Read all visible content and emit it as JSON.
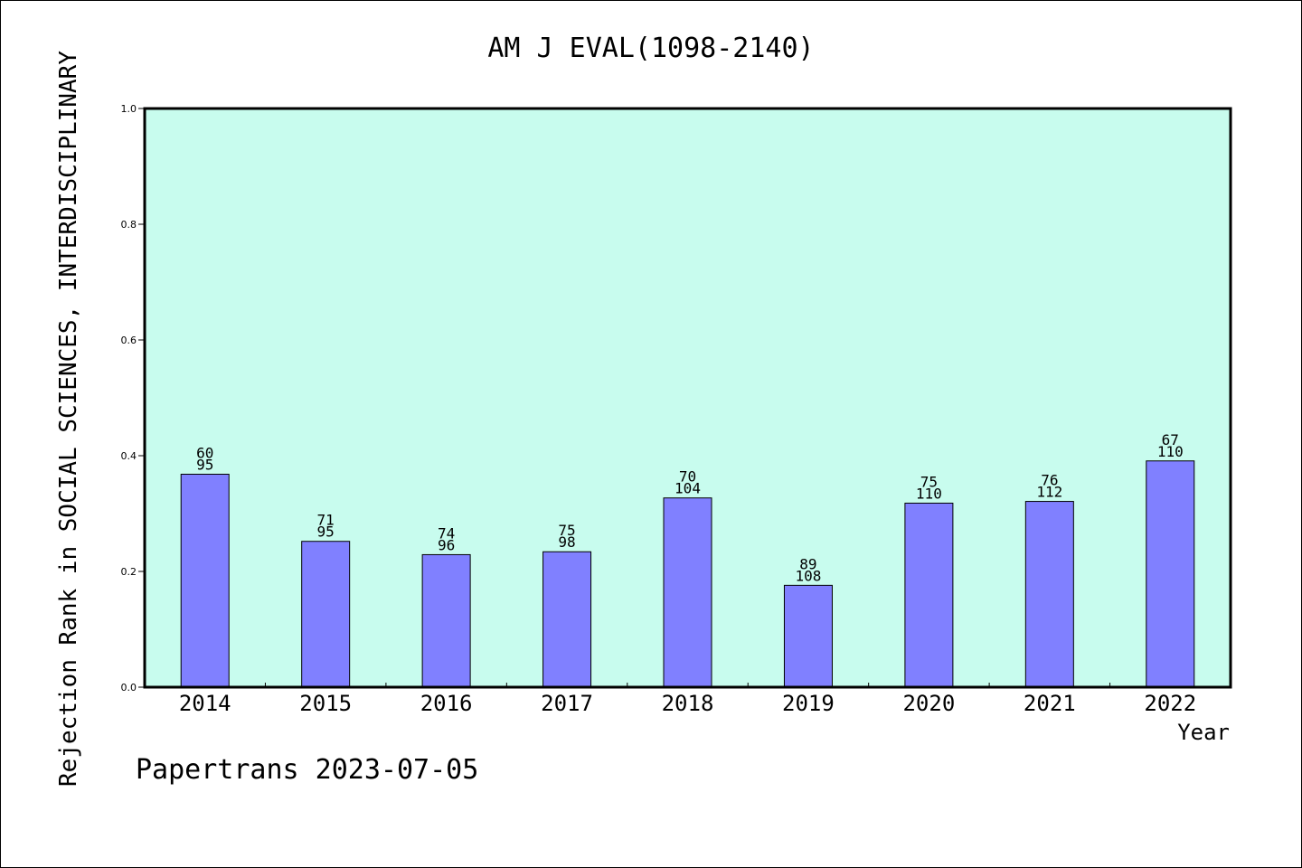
{
  "chart_data": {
    "type": "bar",
    "title": "AM J EVAL(1098-2140)",
    "xlabel": "Year",
    "ylabel": "Rejection Rank in SOCIAL SCIENCES, INTERDISCIPLINARY",
    "ylim": [
      0,
      1.0
    ],
    "yticks": [
      "0.0",
      "0.2",
      "0.4",
      "0.6",
      "0.8",
      "1.0"
    ],
    "categories": [
      "2014",
      "2015",
      "2016",
      "2017",
      "2018",
      "2019",
      "2020",
      "2021",
      "2022"
    ],
    "values": [
      0.368,
      0.252,
      0.229,
      0.234,
      0.327,
      0.176,
      0.318,
      0.321,
      0.391
    ],
    "labels_top": [
      "60",
      "71",
      "74",
      "75",
      "70",
      "89",
      "75",
      "76",
      "67"
    ],
    "labels_bottom": [
      "95",
      "95",
      "96",
      "98",
      "104",
      "108",
      "110",
      "112",
      "110"
    ],
    "grid": false,
    "colors": {
      "plot_background": "#c8fcee",
      "bar_fill": "#8080ff",
      "bar_edge": "#000000"
    }
  },
  "footer": {
    "credit": "Papertrans 2023-07-05"
  }
}
